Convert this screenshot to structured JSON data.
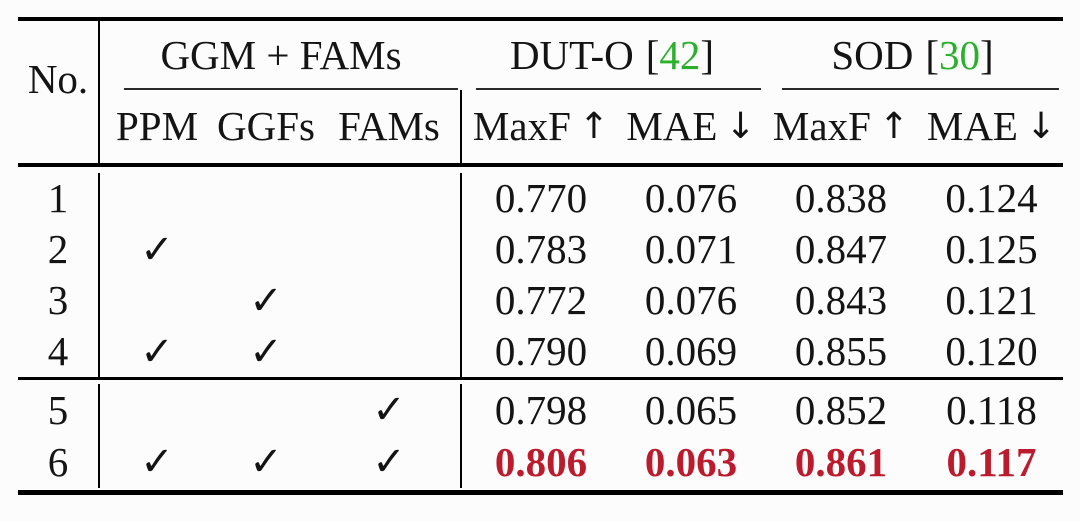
{
  "colors": {
    "rule-black": "#000000",
    "cite-green": "#2ab02a",
    "best-red": "#bb1b2d"
  },
  "table": {
    "header": {
      "no": "No.",
      "bracket_open": "[",
      "bracket_close": "]",
      "groups": [
        {
          "label": "GGM + FAMs"
        },
        {
          "label": "DUT-O",
          "cite": "42"
        },
        {
          "label": "SOD",
          "cite": "30"
        }
      ],
      "subcols": [
        "PPM",
        "GGFs",
        "FAMs"
      ],
      "metrics": [
        {
          "name": "MaxF",
          "arrow": "↑"
        },
        {
          "name": "MAE",
          "arrow": "↓"
        },
        {
          "name": "MaxF",
          "arrow": "↑"
        },
        {
          "name": "MAE",
          "arrow": "↓"
        }
      ]
    },
    "checkmark_glyph": "✓",
    "rows": [
      {
        "no": "1",
        "marks": [
          "",
          "",
          ""
        ],
        "values": [
          "0.770",
          "0.076",
          "0.838",
          "0.124"
        ],
        "best": false
      },
      {
        "no": "2",
        "marks": [
          "✓",
          "",
          ""
        ],
        "values": [
          "0.783",
          "0.071",
          "0.847",
          "0.125"
        ],
        "best": false
      },
      {
        "no": "3",
        "marks": [
          "",
          "✓",
          ""
        ],
        "values": [
          "0.772",
          "0.076",
          "0.843",
          "0.121"
        ],
        "best": false
      },
      {
        "no": "4",
        "marks": [
          "✓",
          "✓",
          ""
        ],
        "values": [
          "0.790",
          "0.069",
          "0.855",
          "0.120"
        ],
        "best": false
      },
      {
        "no": "5",
        "marks": [
          "",
          "",
          "✓"
        ],
        "values": [
          "0.798",
          "0.065",
          "0.852",
          "0.118"
        ],
        "best": false
      },
      {
        "no": "6",
        "marks": [
          "✓",
          "✓",
          "✓"
        ],
        "values": [
          "0.806",
          "0.063",
          "0.861",
          "0.117"
        ],
        "best": true
      }
    ]
  }
}
